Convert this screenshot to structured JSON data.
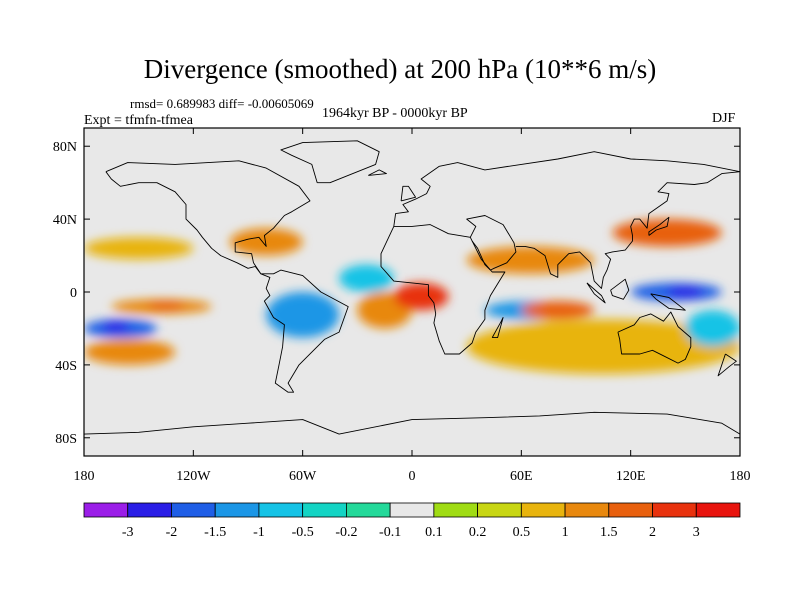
{
  "header": {
    "title": "Divergence (smoothed) at 200 hPa (10**6 m/s)",
    "stats": "rmsd= 0.689983 diff= -0.00605069",
    "experiment": "Expt = tfmfn-tfmea",
    "period": "1964kyr BP - 0000kyr BP",
    "season": "DJF"
  },
  "chart_data": {
    "type": "heatmap",
    "title": "Divergence (smoothed) at 200 hPa (10**6 m/s)",
    "projection": "cylindrical equidistant",
    "xlim": [
      -180,
      180
    ],
    "ylim": [
      -90,
      90
    ],
    "x_ticks": [
      {
        "value": -180,
        "label": "180"
      },
      {
        "value": -120,
        "label": "120W"
      },
      {
        "value": -60,
        "label": "60W"
      },
      {
        "value": 0,
        "label": "0"
      },
      {
        "value": 60,
        "label": "60E"
      },
      {
        "value": 120,
        "label": "120E"
      },
      {
        "value": 180,
        "label": "180"
      }
    ],
    "y_ticks": [
      {
        "value": 80,
        "label": "80N"
      },
      {
        "value": 40,
        "label": "40N"
      },
      {
        "value": 0,
        "label": "0"
      },
      {
        "value": -40,
        "label": "40S"
      },
      {
        "value": -80,
        "label": "80S"
      }
    ],
    "colorbar": {
      "levels": [
        "-3",
        "-2",
        "-1.5",
        "-1",
        "-0.5",
        "-0.2",
        "-0.1",
        "0.1",
        "0.2",
        "0.5",
        "1",
        "1.5",
        "2",
        "3"
      ],
      "colors": [
        "#9b1ee8",
        "#2a1ee6",
        "#1f5ee6",
        "#1b96e6",
        "#16c3e6",
        "#13d4c4",
        "#24d99a",
        "#e8e8e8",
        "#a0dc14",
        "#c8d614",
        "#e8b40e",
        "#e8880e",
        "#e8600e",
        "#e8320e",
        "#e8140e"
      ]
    },
    "fields": [
      {
        "name": "pos-ct-pacific-1",
        "level": "0.5",
        "lon": [
          -180,
          -120
        ],
        "lat": [
          18,
          30
        ]
      },
      {
        "name": "pos-ct-pacific-2",
        "level": "1",
        "lon": [
          -165,
          -110
        ],
        "lat": [
          -12,
          -4
        ]
      },
      {
        "name": "pos-ct-pacific-3",
        "level": "1.5",
        "lon": [
          -145,
          -125
        ],
        "lat": [
          -10,
          -5
        ]
      },
      {
        "name": "neg-ct-pacific-1",
        "level": "-1.5",
        "lon": [
          -180,
          -140
        ],
        "lat": [
          -25,
          -15
        ]
      },
      {
        "name": "neg-ct-pacific-2",
        "level": "-2",
        "lon": [
          -170,
          -155
        ],
        "lat": [
          -22,
          -16
        ]
      },
      {
        "name": "pos-s-pacific",
        "level": "1",
        "lon": [
          -180,
          -130
        ],
        "lat": [
          -40,
          -26
        ]
      },
      {
        "name": "pos-n-atl-1",
        "level": "1",
        "lon": [
          -100,
          -60
        ],
        "lat": [
          20,
          35
        ]
      },
      {
        "name": "neg-s-america",
        "level": "-1",
        "lon": [
          -80,
          -40
        ],
        "lat": [
          -25,
          0
        ]
      },
      {
        "name": "pos-s-atl",
        "level": "1",
        "lon": [
          -30,
          0
        ],
        "lat": [
          -20,
          0
        ]
      },
      {
        "name": "pos-gulf-guinea",
        "level": "2",
        "lon": [
          -10,
          20
        ],
        "lat": [
          -10,
          5
        ]
      },
      {
        "name": "neg-atl-eq",
        "level": "-0.5",
        "lon": [
          -40,
          -10
        ],
        "lat": [
          0,
          15
        ]
      },
      {
        "name": "pos-africa-asia",
        "level": "1",
        "lon": [
          30,
          100
        ],
        "lat": [
          10,
          25
        ]
      },
      {
        "name": "pos-asia-jet",
        "level": "1.5",
        "lon": [
          110,
          170
        ],
        "lat": [
          25,
          40
        ]
      },
      {
        "name": "neg-maritime-1",
        "level": "-1.5",
        "lon": [
          120,
          170
        ],
        "lat": [
          -5,
          5
        ]
      },
      {
        "name": "neg-maritime-2",
        "level": "-2",
        "lon": [
          140,
          160
        ],
        "lat": [
          -3,
          3
        ]
      },
      {
        "name": "neg-indian-1",
        "level": "-1",
        "lon": [
          40,
          90
        ],
        "lat": [
          -15,
          -5
        ]
      },
      {
        "name": "pos-indian",
        "level": "1.5",
        "lon": [
          60,
          100
        ],
        "lat": [
          -15,
          -5
        ]
      },
      {
        "name": "pos-s-indian",
        "level": "0.5",
        "lon": [
          30,
          180
        ],
        "lat": [
          -45,
          -15
        ]
      },
      {
        "name": "neg-w-pacific-s",
        "level": "-0.5",
        "lon": [
          150,
          180
        ],
        "lat": [
          -30,
          -10
        ]
      }
    ]
  }
}
